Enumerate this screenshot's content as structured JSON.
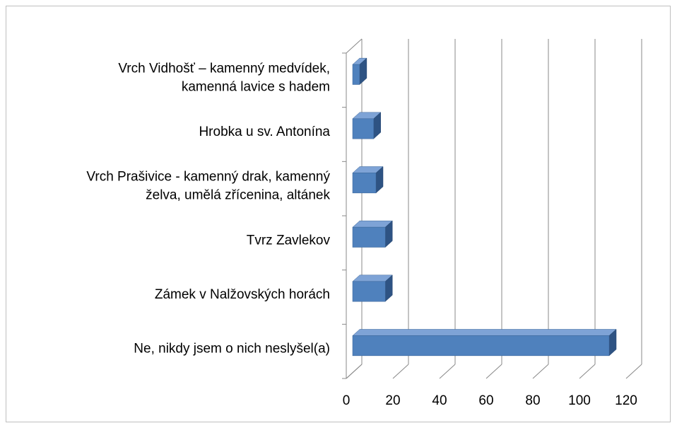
{
  "chart_data": {
    "type": "bar",
    "orientation": "horizontal",
    "three_d": true,
    "categories": [
      "Ne, nikdy jsem o nich neslyšel(a)",
      "Zámek v Nalžovských horách",
      "Tvrz Zavlekov",
      "Vrch Prašivice - kamenný drak, kamenný\nželva, umělá zřícenina, altánek",
      "Hrobka u sv. Antonína",
      "Vrch Vidhošť – kamenný medvídek,\nkamenná lavice s hadem"
    ],
    "values": [
      110,
      14,
      14,
      10,
      9,
      3
    ],
    "color": "#4f81bd",
    "xlim": [
      0,
      120
    ],
    "xticks": [
      0,
      20,
      40,
      60,
      80,
      100,
      120
    ],
    "grid": true
  }
}
